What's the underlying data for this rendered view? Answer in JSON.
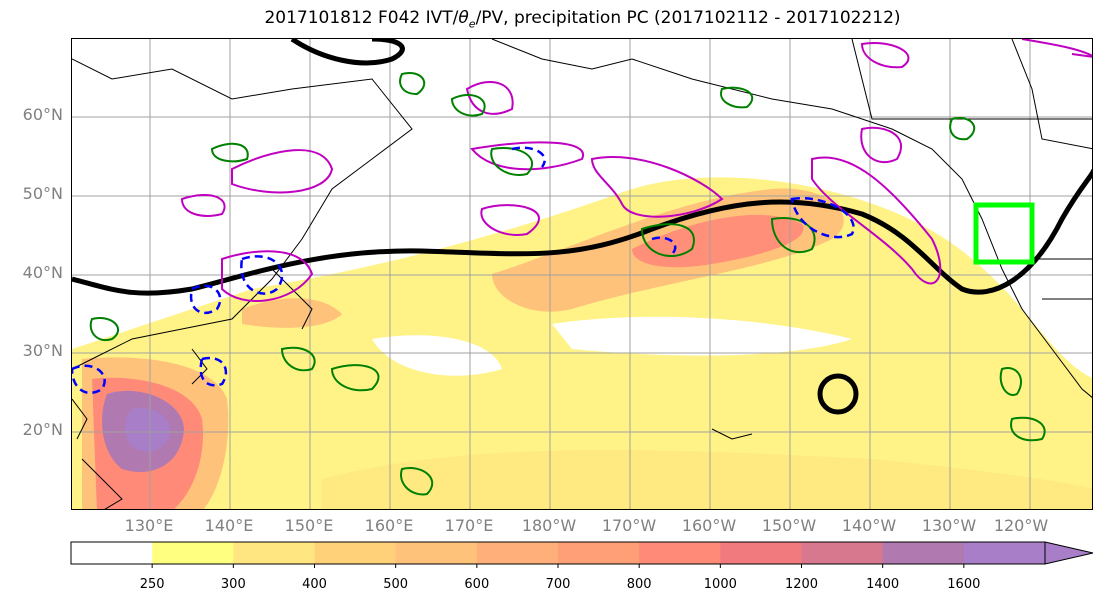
{
  "title": {
    "prefix": "2017101812 F042 IVT/",
    "theta": "θ",
    "sub": "e",
    "suffix": "/PV, precipitation PC (2017102112 - 2017102212)"
  },
  "lat_labels": [
    "60°N",
    "50°N",
    "40°N",
    "30°N",
    "20°N"
  ],
  "lon_labels": [
    "130°E",
    "140°E",
    "150°E",
    "160°E",
    "170°E",
    "180°W",
    "170°W",
    "160°W",
    "150°W",
    "140°W",
    "130°W",
    "120°W"
  ],
  "colorbar": {
    "levels": [
      "250",
      "300",
      "400",
      "500",
      "600",
      "700",
      "800",
      "1000",
      "1200",
      "1400",
      "1600"
    ],
    "colors": [
      "#ffffff",
      "#ffff80",
      "#ffe680",
      "#ffd27a",
      "#ffc27a",
      "#ffb07a",
      "#ff9f78",
      "#ff8a78",
      "#f07a7e",
      "#d8788e",
      "#b07ab0",
      "#a87ec8"
    ]
  },
  "colors": {
    "ivt_low": "#fff27a",
    "ivt_mid": "#ffc27a",
    "ivt_high": "#ff8a78",
    "ivt_max": "#a87ec8",
    "theta_contour": "#000000",
    "pv_contour": "#c000c0",
    "precip_contour": "#008000",
    "dashed_contour": "#0000ff",
    "target_box": "#00ff00"
  }
}
